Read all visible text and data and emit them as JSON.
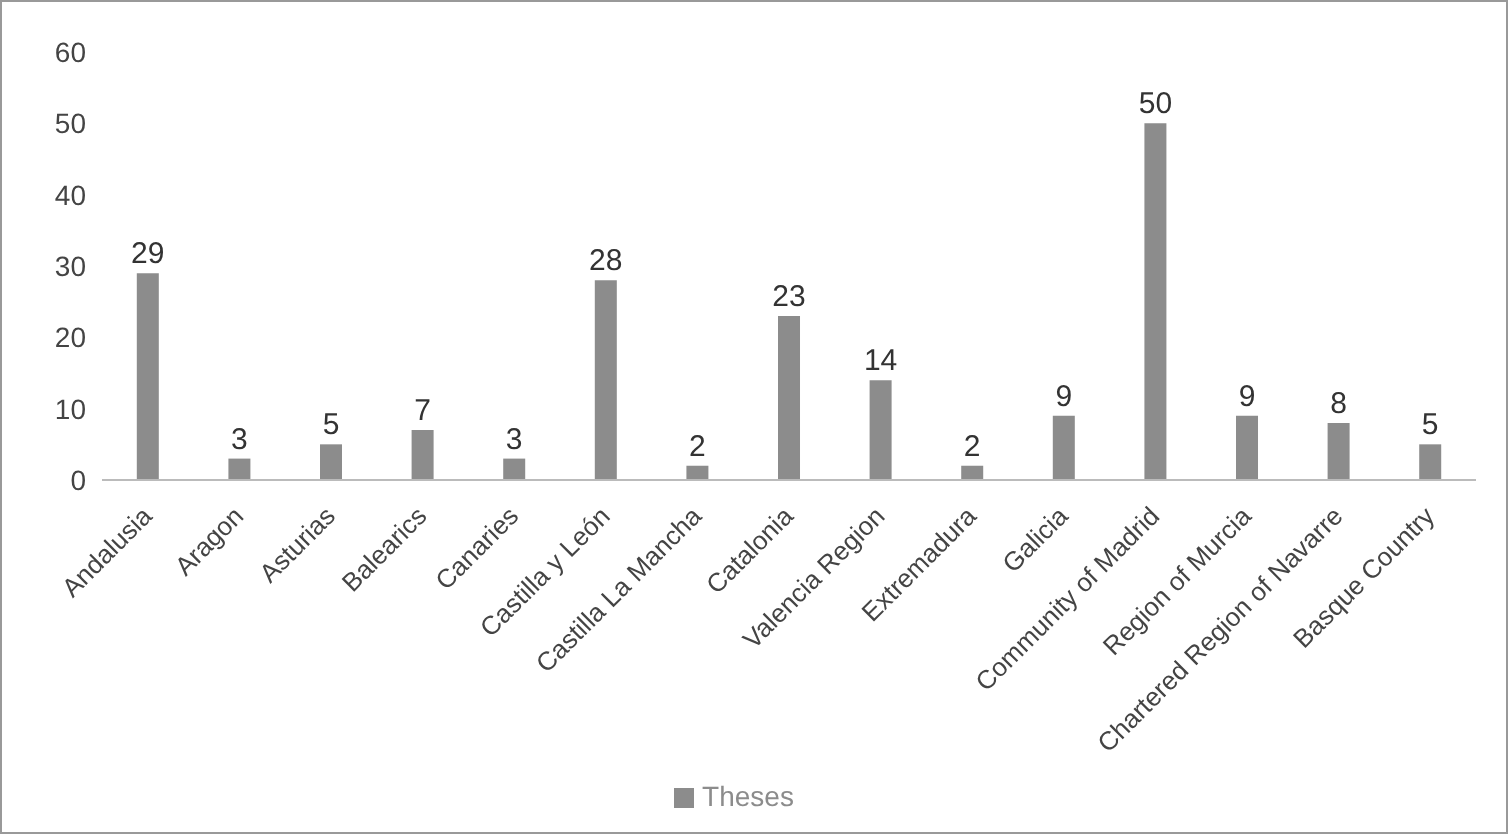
{
  "chart_data": {
    "type": "bar",
    "categories": [
      "Andalusia",
      "Aragon",
      "Asturias",
      "Balearics",
      "Canaries",
      "Castilla y León",
      "Castilla La Mancha",
      "Catalonia",
      "Valencia Region",
      "Extremadura",
      "Galicia",
      "Community of Madrid",
      "Region of Murcia",
      "Chartered Region of Navarre",
      "Basque Country"
    ],
    "series": [
      {
        "name": "Theses",
        "color": "#8c8c8c",
        "values": [
          29,
          3,
          5,
          7,
          3,
          28,
          2,
          23,
          14,
          2,
          9,
          50,
          9,
          8,
          5
        ]
      }
    ],
    "ylim": [
      0,
      60
    ],
    "yticks": [
      0,
      10,
      20,
      30,
      40,
      50,
      60
    ],
    "grid": false,
    "legend": "bottom",
    "data_labels": true
  }
}
